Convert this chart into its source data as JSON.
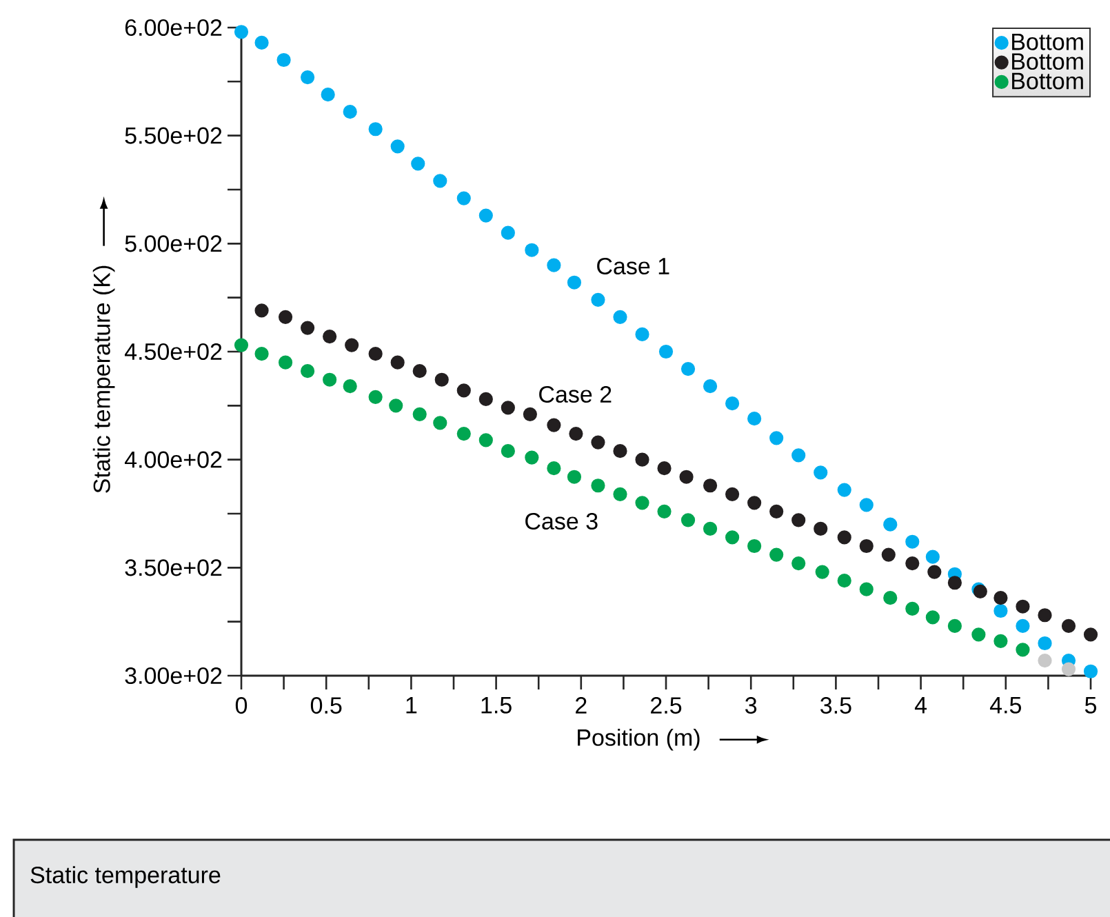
{
  "chart_data": {
    "type": "scatter",
    "xlabel": "Position (m)",
    "ylabel": "Static temperature (K)",
    "xlim": [
      0,
      5
    ],
    "ylim": [
      300,
      600
    ],
    "xticks": [
      0,
      {
        "value": 0.25,
        "label": null
      },
      0.5,
      {
        "value": 0.75,
        "label": null
      },
      1,
      {
        "value": 1.25,
        "label": null
      },
      1.5,
      {
        "value": 1.75,
        "label": null
      },
      2,
      {
        "value": 2.25,
        "label": null
      },
      2.5,
      {
        "value": 2.75,
        "label": null
      },
      3,
      {
        "value": 3.25,
        "label": null
      },
      3.5,
      {
        "value": 3.75,
        "label": null
      },
      4,
      {
        "value": 4.25,
        "label": null
      },
      4.5,
      {
        "value": 4.75,
        "label": null
      },
      5
    ],
    "yticks": [
      {
        "value": 300,
        "label": "3.00e+02"
      },
      {
        "value": 325,
        "label": null
      },
      {
        "value": 350,
        "label": "3.50e+02"
      },
      {
        "value": 375,
        "label": null
      },
      {
        "value": 400,
        "label": "4.00e+02"
      },
      {
        "value": 425,
        "label": null
      },
      {
        "value": 450,
        "label": "4.50e+02"
      },
      {
        "value": 475,
        "label": null
      },
      {
        "value": 500,
        "label": "5.00e+02"
      },
      {
        "value": 525,
        "label": null
      },
      {
        "value": 550,
        "label": "5.50e+02"
      },
      {
        "value": 575,
        "label": null
      },
      {
        "value": 600,
        "label": "6.00e+02"
      }
    ],
    "marker": "circle",
    "legend": "top right",
    "grid": false,
    "series": [
      {
        "name": "Bottom",
        "color": "#00aeef",
        "x": [
          0,
          0.12,
          0.25,
          0.39,
          0.51,
          0.64,
          0.79,
          0.92,
          1.04,
          1.17,
          1.31,
          1.44,
          1.57,
          1.71,
          1.84,
          1.96,
          2.1,
          2.23,
          2.36,
          2.5,
          2.63,
          2.76,
          2.89,
          3.02,
          3.15,
          3.28,
          3.41,
          3.55,
          3.68,
          3.82,
          3.95,
          4.07,
          4.2,
          4.34,
          4.47,
          4.6,
          4.73,
          4.87,
          5.0
        ],
        "values": [
          598,
          593,
          585,
          577,
          569,
          561,
          553,
          545,
          537,
          529,
          521,
          513,
          505,
          497,
          490,
          482,
          474,
          466,
          458,
          450,
          442,
          434,
          426,
          419,
          410,
          402,
          394,
          386,
          379,
          370,
          362,
          355,
          347,
          340,
          330,
          323,
          315,
          307,
          302
        ]
      },
      {
        "name": "Bottom",
        "color": "#231f20",
        "x": [
          0.12,
          0.26,
          0.39,
          0.52,
          0.65,
          0.79,
          0.92,
          1.05,
          1.18,
          1.31,
          1.44,
          1.57,
          1.7,
          1.84,
          1.97,
          2.1,
          2.23,
          2.36,
          2.49,
          2.62,
          2.76,
          2.89,
          3.02,
          3.15,
          3.28,
          3.41,
          3.55,
          3.68,
          3.81,
          3.95,
          4.08,
          4.2,
          4.35,
          4.47,
          4.6,
          4.73,
          4.87,
          5.0
        ],
        "values": [
          469,
          466,
          461,
          457,
          453,
          449,
          445,
          441,
          437,
          432,
          428,
          424,
          421,
          416,
          412,
          408,
          404,
          400,
          396,
          392,
          388,
          384,
          380,
          376,
          372,
          368,
          364,
          360,
          356,
          352,
          348,
          343,
          339,
          336,
          332,
          328,
          323,
          319
        ]
      },
      {
        "name": "Bottom",
        "color": "#00a651",
        "x": [
          0,
          0.12,
          0.26,
          0.39,
          0.52,
          0.64,
          0.79,
          0.91,
          1.05,
          1.17,
          1.31,
          1.44,
          1.57,
          1.71,
          1.84,
          1.96,
          2.1,
          2.23,
          2.36,
          2.49,
          2.63,
          2.76,
          2.89,
          3.02,
          3.15,
          3.28,
          3.42,
          3.55,
          3.68,
          3.82,
          3.95,
          4.07,
          4.2,
          4.34,
          4.47,
          4.6
        ],
        "values": [
          453,
          449,
          445,
          441,
          437,
          434,
          429,
          425,
          421,
          417,
          412,
          409,
          404,
          401,
          396,
          392,
          388,
          384,
          380,
          376,
          372,
          368,
          364,
          360,
          356,
          352,
          348,
          344,
          340,
          336,
          331,
          327,
          323,
          319,
          316,
          312
        ]
      },
      {
        "color": "#c8c8c8",
        "x": [
          4.73,
          4.87
        ],
        "values": [
          307,
          303
        ]
      }
    ],
    "annotations": [
      "Case 1",
      "Case 2",
      "Case 3",
      "Static temperature"
    ]
  }
}
